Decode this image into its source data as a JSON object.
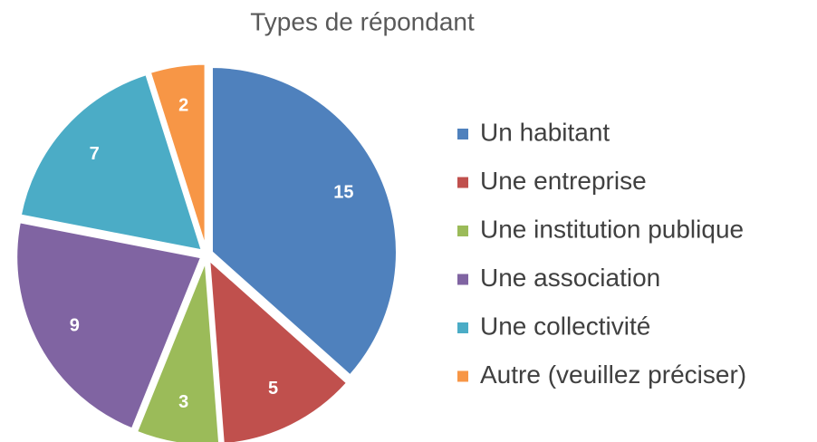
{
  "chart_data": {
    "type": "pie",
    "title": "Types de répondant",
    "categories": [
      "Un habitant",
      "Une entreprise",
      "Une institution publique",
      "Une association",
      "Une collectivité",
      "Autre (veuillez préciser)"
    ],
    "values": [
      15,
      5,
      3,
      9,
      7,
      2
    ],
    "colors": [
      "#4f81bd",
      "#c0504d",
      "#9bbb59",
      "#8064a2",
      "#4bacc6",
      "#f79646"
    ],
    "legend": "right"
  }
}
